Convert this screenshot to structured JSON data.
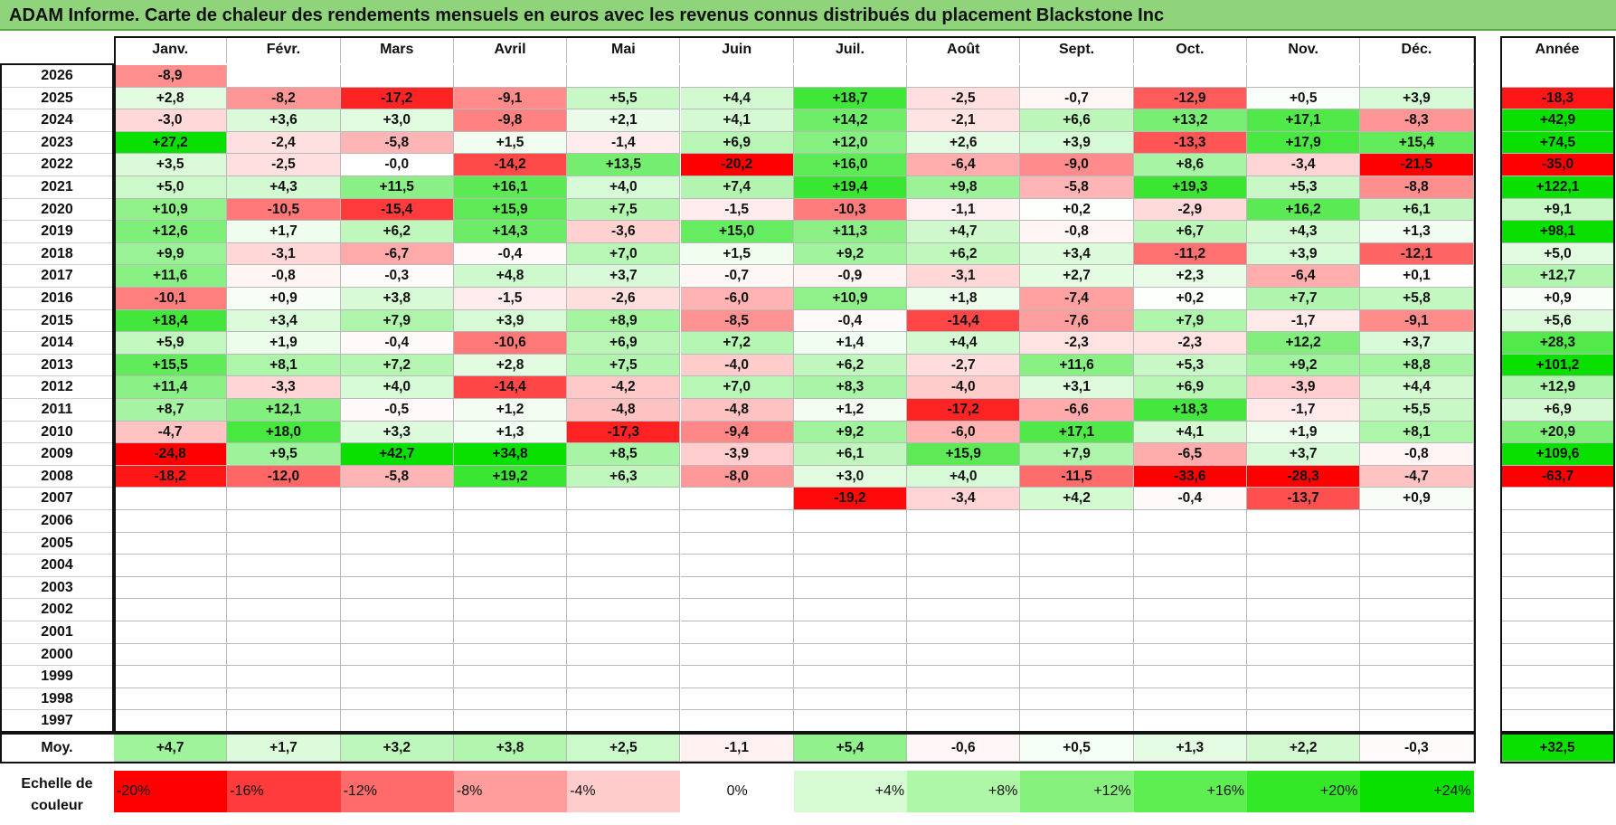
{
  "title": "ADAM Informe. Carte de chaleur des rendements mensuels en euros avec les revenus connus distribués du placement Blackstone Inc",
  "chart_data": {
    "type": "heatmap",
    "title": "ADAM Informe. Carte de chaleur des rendements mensuels en euros avec les revenus connus distribués du placement Blackstone Inc",
    "columns": [
      "Janv.",
      "Févr.",
      "Mars",
      "Avril",
      "Mai",
      "Juin",
      "Juil.",
      "Août",
      "Sept.",
      "Oct.",
      "Nov.",
      "Déc."
    ],
    "year_column": "Année",
    "rows": [
      {
        "year": "2026",
        "values": [
          "-8,9",
          "",
          "",
          "",
          "",
          "",
          "",
          "",
          "",
          "",
          "",
          ""
        ],
        "annual": ""
      },
      {
        "year": "2025",
        "values": [
          "+2,8",
          "-8,2",
          "-17,2",
          "-9,1",
          "+5,5",
          "+4,4",
          "+18,7",
          "-2,5",
          "-0,7",
          "-12,9",
          "+0,5",
          "+3,9"
        ],
        "annual": "-18,3"
      },
      {
        "year": "2024",
        "values": [
          "-3,0",
          "+3,6",
          "+3,0",
          "-9,8",
          "+2,1",
          "+4,1",
          "+14,2",
          "-2,1",
          "+6,6",
          "+13,2",
          "+17,1",
          "-8,3"
        ],
        "annual": "+42,9"
      },
      {
        "year": "2023",
        "values": [
          "+27,2",
          "-2,4",
          "-5,8",
          "+1,5",
          "-1,4",
          "+6,9",
          "+12,0",
          "+2,6",
          "+3,9",
          "-13,3",
          "+17,9",
          "+15,4"
        ],
        "annual": "+74,5"
      },
      {
        "year": "2022",
        "values": [
          "+3,5",
          "-2,5",
          "-0,0",
          "-14,2",
          "+13,5",
          "-20,2",
          "+16,0",
          "-6,4",
          "-9,0",
          "+8,6",
          "-3,4",
          "-21,5"
        ],
        "annual": "-35,0"
      },
      {
        "year": "2021",
        "values": [
          "+5,0",
          "+4,3",
          "+11,5",
          "+16,1",
          "+4,0",
          "+7,4",
          "+19,4",
          "+9,8",
          "-5,8",
          "+19,3",
          "+5,3",
          "-8,8"
        ],
        "annual": "+122,1"
      },
      {
        "year": "2020",
        "values": [
          "+10,9",
          "-10,5",
          "-15,4",
          "+15,9",
          "+7,5",
          "-1,5",
          "-10,3",
          "-1,1",
          "+0,2",
          "-2,9",
          "+16,2",
          "+6,1"
        ],
        "annual": "+9,1"
      },
      {
        "year": "2019",
        "values": [
          "+12,6",
          "+1,7",
          "+6,2",
          "+14,3",
          "-3,6",
          "+15,0",
          "+11,3",
          "+4,7",
          "-0,8",
          "+6,7",
          "+4,3",
          "+1,3"
        ],
        "annual": "+98,1"
      },
      {
        "year": "2018",
        "values": [
          "+9,9",
          "-3,1",
          "-6,7",
          "-0,4",
          "+7,0",
          "+1,5",
          "+9,2",
          "+6,2",
          "+3,4",
          "-11,2",
          "+3,9",
          "-12,1"
        ],
        "annual": "+5,0"
      },
      {
        "year": "2017",
        "values": [
          "+11,6",
          "-0,8",
          "-0,3",
          "+4,8",
          "+3,7",
          "-0,7",
          "-0,9",
          "-3,1",
          "+2,7",
          "+2,3",
          "-6,4",
          "+0,1"
        ],
        "annual": "+12,7"
      },
      {
        "year": "2016",
        "values": [
          "-10,1",
          "+0,9",
          "+3,8",
          "-1,5",
          "-2,6",
          "-6,0",
          "+10,9",
          "+1,8",
          "-7,4",
          "+0,2",
          "+7,7",
          "+5,8"
        ],
        "annual": "+0,9"
      },
      {
        "year": "2015",
        "values": [
          "+18,4",
          "+3,4",
          "+7,9",
          "+3,9",
          "+8,9",
          "-8,5",
          "-0,4",
          "-14,4",
          "-7,6",
          "+7,9",
          "-1,7",
          "-9,1"
        ],
        "annual": "+5,6"
      },
      {
        "year": "2014",
        "values": [
          "+5,9",
          "+1,9",
          "-0,4",
          "-10,6",
          "+6,9",
          "+7,2",
          "+1,4",
          "+4,4",
          "-2,3",
          "-2,3",
          "+12,2",
          "+3,7"
        ],
        "annual": "+28,3"
      },
      {
        "year": "2013",
        "values": [
          "+15,5",
          "+8,1",
          "+7,2",
          "+2,8",
          "+7,5",
          "-4,0",
          "+6,2",
          "-2,7",
          "+11,6",
          "+5,3",
          "+9,2",
          "+8,8"
        ],
        "annual": "+101,2"
      },
      {
        "year": "2012",
        "values": [
          "+11,4",
          "-3,3",
          "+4,0",
          "-14,4",
          "-4,2",
          "+7,0",
          "+8,3",
          "-4,0",
          "+3,1",
          "+6,9",
          "-3,9",
          "+4,4"
        ],
        "annual": "+12,9"
      },
      {
        "year": "2011",
        "values": [
          "+8,7",
          "+12,1",
          "-0,5",
          "+1,2",
          "-4,8",
          "-4,8",
          "+1,2",
          "-17,2",
          "-6,6",
          "+18,3",
          "-1,7",
          "+5,5"
        ],
        "annual": "+6,9"
      },
      {
        "year": "2010",
        "values": [
          "-4,7",
          "+18,0",
          "+3,3",
          "+1,3",
          "-17,3",
          "-9,4",
          "+9,2",
          "-6,0",
          "+17,1",
          "+4,1",
          "+1,9",
          "+8,1"
        ],
        "annual": "+20,9"
      },
      {
        "year": "2009",
        "values": [
          "-24,8",
          "+9,5",
          "+42,7",
          "+34,8",
          "+8,5",
          "-3,9",
          "+6,1",
          "+15,9",
          "+7,9",
          "-6,5",
          "+3,7",
          "-0,8"
        ],
        "annual": "+109,6"
      },
      {
        "year": "2008",
        "values": [
          "-18,2",
          "-12,0",
          "-5,8",
          "+19,2",
          "+6,3",
          "-8,0",
          "+3,0",
          "+4,0",
          "-11,5",
          "-33,6",
          "-28,3",
          "-4,7"
        ],
        "annual": "-63,7"
      },
      {
        "year": "2007",
        "values": [
          "",
          "",
          "",
          "",
          "",
          "",
          "-19,2",
          "-3,4",
          "+4,2",
          "-0,4",
          "-13,7",
          "+0,9"
        ],
        "annual": ""
      },
      {
        "year": "2006",
        "values": [
          "",
          "",
          "",
          "",
          "",
          "",
          "",
          "",
          "",
          "",
          "",
          ""
        ],
        "annual": ""
      },
      {
        "year": "2005",
        "values": [
          "",
          "",
          "",
          "",
          "",
          "",
          "",
          "",
          "",
          "",
          "",
          ""
        ],
        "annual": ""
      },
      {
        "year": "2004",
        "values": [
          "",
          "",
          "",
          "",
          "",
          "",
          "",
          "",
          "",
          "",
          "",
          ""
        ],
        "annual": ""
      },
      {
        "year": "2003",
        "values": [
          "",
          "",
          "",
          "",
          "",
          "",
          "",
          "",
          "",
          "",
          "",
          ""
        ],
        "annual": ""
      },
      {
        "year": "2002",
        "values": [
          "",
          "",
          "",
          "",
          "",
          "",
          "",
          "",
          "",
          "",
          "",
          ""
        ],
        "annual": ""
      },
      {
        "year": "2001",
        "values": [
          "",
          "",
          "",
          "",
          "",
          "",
          "",
          "",
          "",
          "",
          "",
          ""
        ],
        "annual": ""
      },
      {
        "year": "2000",
        "values": [
          "",
          "",
          "",
          "",
          "",
          "",
          "",
          "",
          "",
          "",
          "",
          ""
        ],
        "annual": ""
      },
      {
        "year": "1999",
        "values": [
          "",
          "",
          "",
          "",
          "",
          "",
          "",
          "",
          "",
          "",
          "",
          ""
        ],
        "annual": ""
      },
      {
        "year": "1998",
        "values": [
          "",
          "",
          "",
          "",
          "",
          "",
          "",
          "",
          "",
          "",
          "",
          ""
        ],
        "annual": ""
      },
      {
        "year": "1997",
        "values": [
          "",
          "",
          "",
          "",
          "",
          "",
          "",
          "",
          "",
          "",
          "",
          ""
        ],
        "annual": ""
      }
    ],
    "average": {
      "label": "Moy.",
      "values": [
        "+4,7",
        "+1,7",
        "+3,2",
        "+3,8",
        "+2,5",
        "-1,1",
        "+5,4",
        "-0,6",
        "+0,5",
        "+1,3",
        "+2,2",
        "-0,3"
      ],
      "annual": "+32,5"
    },
    "color_scale": {
      "label": "Echelle de couleur",
      "steps": [
        {
          "label": "-20%",
          "value": -20,
          "color": "#ff0000"
        },
        {
          "label": "-16%",
          "value": -16,
          "color": "#ff3b3b"
        },
        {
          "label": "-12%",
          "value": -12,
          "color": "#ff6b6b"
        },
        {
          "label": "-8%",
          "value": -8,
          "color": "#ff9c9c"
        },
        {
          "label": "-4%",
          "value": -4,
          "color": "#ffcccc"
        },
        {
          "label": "0%",
          "value": 0,
          "color": "#ffffff"
        },
        {
          "label": "+4%",
          "value": 4,
          "color": "#d6fbd3"
        },
        {
          "label": "+8%",
          "value": 8,
          "color": "#aef7a7"
        },
        {
          "label": "+12%",
          "value": 12,
          "color": "#86f27d"
        },
        {
          "label": "+16%",
          "value": 16,
          "color": "#5eee52"
        },
        {
          "label": "+20%",
          "value": 20,
          "color": "#33e826"
        },
        {
          "label": "+24%",
          "value": 24,
          "color": "#0ae000"
        }
      ]
    }
  }
}
